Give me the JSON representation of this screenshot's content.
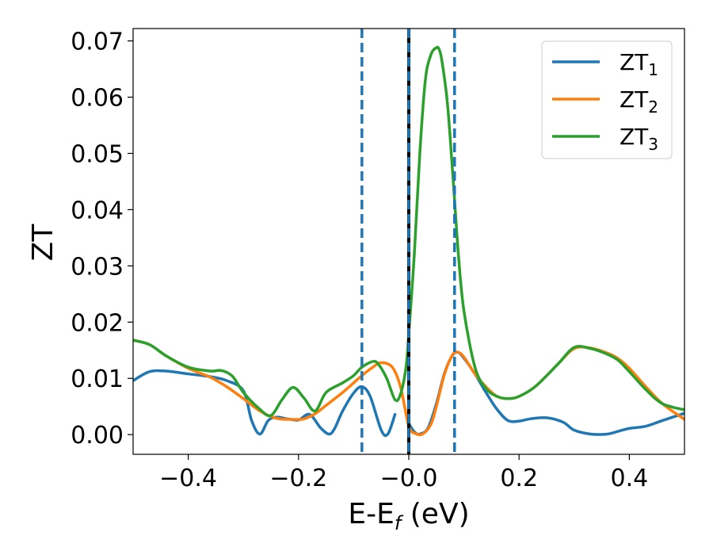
{
  "chart_data": {
    "type": "line",
    "xlabel": "E-E",
    "xlabel_sub": "f",
    "xlabel_unit": " (eV)",
    "ylabel": "ZT",
    "xlim": [
      -0.5,
      0.5
    ],
    "ylim": [
      -0.0035,
      0.0722
    ],
    "xticks": [
      -0.4,
      -0.2,
      0.0,
      0.2,
      0.4
    ],
    "xtick_labels": [
      "−0.4",
      "−0.2",
      "−0.0",
      "0.2",
      "0.4"
    ],
    "yticks": [
      0.0,
      0.01,
      0.02,
      0.03,
      0.04,
      0.05,
      0.06,
      0.07
    ],
    "ytick_labels": [
      "0.00",
      "0.01",
      "0.02",
      "0.03",
      "0.04",
      "0.05",
      "0.06",
      "0.07"
    ],
    "legend_position": "top-right",
    "grid": false,
    "vlines": [
      {
        "x": -0.085,
        "style": "dashed",
        "color": "#1f77b4"
      },
      {
        "x": 0.0,
        "style": "solid",
        "color": "#000000"
      },
      {
        "x": 0.0,
        "style": "dashed",
        "color": "#1f77b4"
      },
      {
        "x": 0.083,
        "style": "dashed",
        "color": "#1f77b4"
      }
    ],
    "series": [
      {
        "name": "ZT",
        "name_sub": "1",
        "color": "#1f77b4",
        "segments": [
          {
            "x": [
              -0.5,
              -0.47,
              -0.44,
              -0.4,
              -0.36,
              -0.33,
              -0.3,
              -0.285,
              -0.27,
              -0.255,
              -0.24,
              -0.22,
              -0.2,
              -0.18,
              -0.16,
              -0.145,
              -0.135,
              -0.12,
              -0.1,
              -0.085,
              -0.07,
              -0.05,
              -0.038,
              -0.025
            ],
            "y": [
              0.0096,
              0.0112,
              0.0113,
              0.0108,
              0.0103,
              0.0096,
              0.0078,
              0.0025,
              0.0001,
              0.0025,
              0.0031,
              0.0028,
              0.0026,
              0.0036,
              0.0012,
              0.0001,
              0.001,
              0.0042,
              0.0074,
              0.0085,
              0.0068,
              0.0008,
              0.0001,
              0.0036
            ]
          },
          {
            "x": [
              0.0,
              0.01,
              0.02,
              0.035,
              0.05,
              0.065,
              0.08,
              0.09,
              0.1,
              0.12,
              0.14,
              0.16,
              0.18,
              0.2,
              0.22,
              0.25,
              0.28,
              0.3,
              0.33,
              0.36,
              0.38,
              0.4,
              0.43,
              0.46,
              0.5
            ],
            "y": [
              0.002,
              0.0005,
              0.0001,
              0.0012,
              0.0055,
              0.011,
              0.0142,
              0.0146,
              0.0136,
              0.0108,
              0.0075,
              0.0045,
              0.0025,
              0.0024,
              0.0028,
              0.003,
              0.0022,
              0.0008,
              0.0001,
              0.0001,
              0.0006,
              0.0011,
              0.0015,
              0.0025,
              0.0038
            ]
          }
        ]
      },
      {
        "name": "ZT",
        "name_sub": "2",
        "color": "#ff7f0e",
        "segments": [
          {
            "x": [
              -0.5,
              -0.47,
              -0.44,
              -0.4,
              -0.36,
              -0.33,
              -0.3,
              -0.27,
              -0.24,
              -0.21,
              -0.19,
              -0.17,
              -0.15,
              -0.12,
              -0.1,
              -0.085,
              -0.065,
              -0.05,
              -0.03,
              -0.015,
              0.0,
              0.012,
              0.025,
              0.04,
              0.05,
              0.065,
              0.08,
              0.09,
              0.1,
              0.12,
              0.14,
              0.16,
              0.18,
              0.2,
              0.23,
              0.27,
              0.3,
              0.33,
              0.36,
              0.38,
              0.4,
              0.43,
              0.46,
              0.5
            ],
            "y": [
              0.0168,
              0.016,
              0.014,
              0.0118,
              0.0102,
              0.0085,
              0.0064,
              0.0042,
              0.0029,
              0.0027,
              0.0028,
              0.0037,
              0.0052,
              0.0075,
              0.0092,
              0.0105,
              0.012,
              0.0128,
              0.012,
              0.0085,
              0.0015,
              0.0002,
              0.0001,
              0.0018,
              0.005,
              0.0108,
              0.0143,
              0.0146,
              0.0138,
              0.0108,
              0.0085,
              0.0068,
              0.0064,
              0.0068,
              0.0086,
              0.0125,
              0.0153,
              0.0154,
              0.0145,
              0.0135,
              0.0118,
              0.0085,
              0.0055,
              0.0027
            ]
          }
        ]
      },
      {
        "name": "ZT",
        "name_sub": "3",
        "color": "#2ca02c",
        "segments": [
          {
            "x": [
              -0.5,
              -0.47,
              -0.44,
              -0.4,
              -0.36,
              -0.34,
              -0.32,
              -0.3,
              -0.27,
              -0.25,
              -0.23,
              -0.21,
              -0.19,
              -0.17,
              -0.15,
              -0.12,
              -0.1,
              -0.085,
              -0.065,
              -0.055,
              -0.04,
              -0.025,
              -0.015,
              -0.005,
              0.0,
              0.01,
              0.02,
              0.03,
              0.04,
              0.05,
              0.055,
              0.06,
              0.07,
              0.08,
              0.09,
              0.1,
              0.12,
              0.14,
              0.16,
              0.18,
              0.2,
              0.23,
              0.27,
              0.3,
              0.33,
              0.36,
              0.38,
              0.4,
              0.43,
              0.46,
              0.5
            ],
            "y": [
              0.0168,
              0.016,
              0.014,
              0.012,
              0.0113,
              0.0114,
              0.0104,
              0.0075,
              0.0045,
              0.0034,
              0.0062,
              0.0084,
              0.0065,
              0.0042,
              0.0075,
              0.0092,
              0.0105,
              0.012,
              0.013,
              0.0125,
              0.01,
              0.0062,
              0.0072,
              0.012,
              0.018,
              0.032,
              0.05,
              0.063,
              0.0675,
              0.0688,
              0.0685,
              0.0665,
              0.059,
              0.046,
              0.032,
              0.022,
              0.012,
              0.0082,
              0.0068,
              0.0064,
              0.0068,
              0.0086,
              0.0125,
              0.0155,
              0.0153,
              0.0143,
              0.0132,
              0.0112,
              0.008,
              0.0055,
              0.0044
            ]
          }
        ]
      }
    ]
  }
}
